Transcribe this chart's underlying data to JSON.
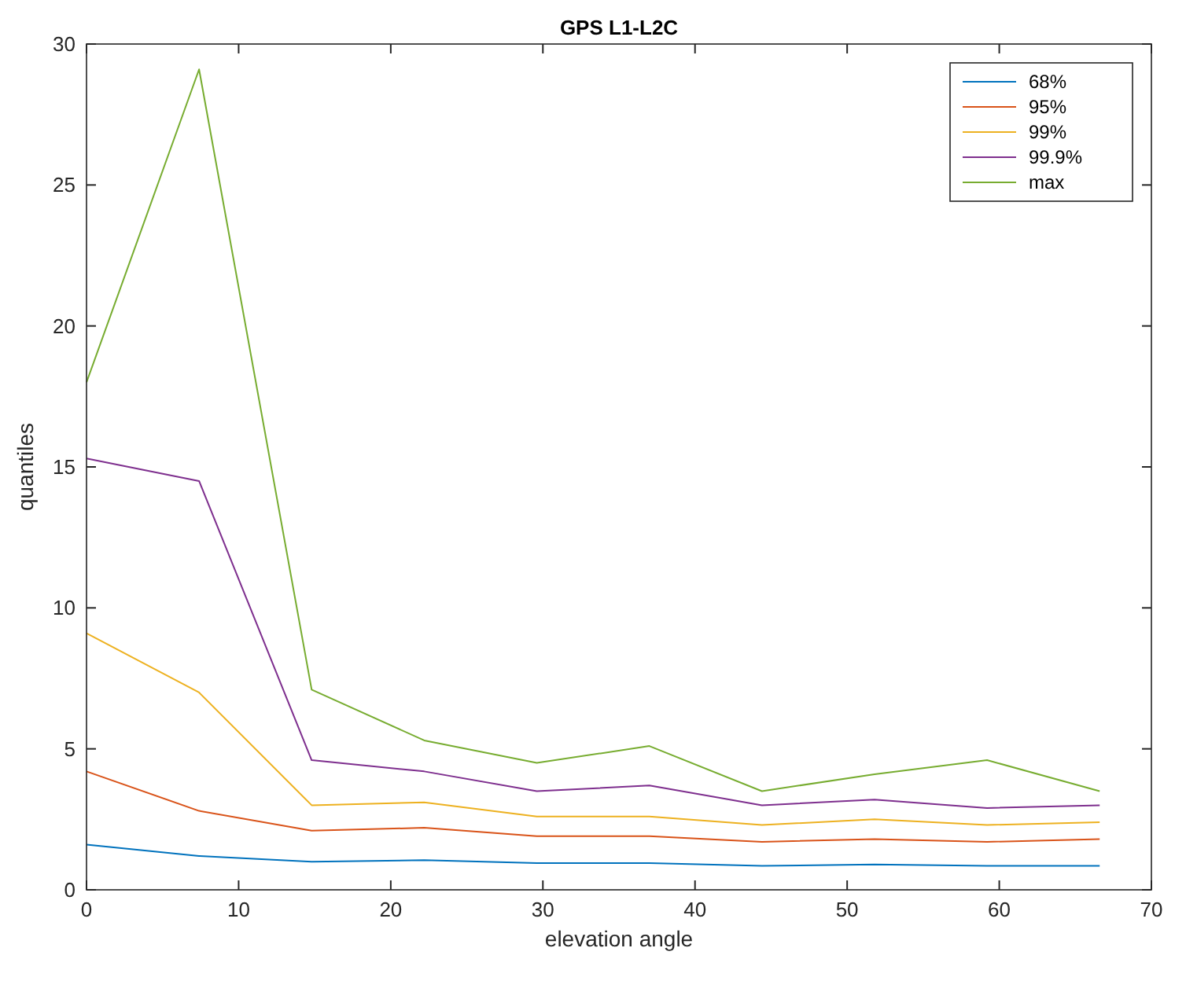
{
  "chart_data": {
    "type": "line",
    "title": "GPS L1-L2C",
    "xlabel": "elevation angle",
    "ylabel": "quantiles",
    "x": [
      0,
      7.4,
      14.8,
      22.2,
      29.6,
      37,
      44.4,
      51.8,
      59.2,
      66.6
    ],
    "xlim": [
      0,
      70
    ],
    "xticks": [
      0,
      10,
      20,
      30,
      40,
      50,
      60,
      70
    ],
    "ylim": [
      0,
      30
    ],
    "yticks": [
      0,
      5,
      10,
      15,
      20,
      25,
      30
    ],
    "grid": false,
    "legend": "top right",
    "marker": "none",
    "line_style": "solid",
    "series": [
      {
        "name": "68%",
        "color": "#0072bd",
        "values": [
          1.6,
          1.2,
          1.0,
          1.05,
          0.95,
          0.95,
          0.85,
          0.9,
          0.85,
          0.85
        ]
      },
      {
        "name": "95%",
        "color": "#d95319",
        "values": [
          4.2,
          2.8,
          2.1,
          2.2,
          1.9,
          1.9,
          1.7,
          1.8,
          1.7,
          1.8
        ]
      },
      {
        "name": "99%",
        "color": "#edb120",
        "values": [
          9.1,
          7.0,
          3.0,
          3.1,
          2.6,
          2.6,
          2.3,
          2.5,
          2.3,
          2.4
        ]
      },
      {
        "name": "99.9%",
        "color": "#7e2f8e",
        "values": [
          15.3,
          14.5,
          4.6,
          4.2,
          3.5,
          3.7,
          3.0,
          3.2,
          2.9,
          3.0
        ]
      },
      {
        "name": "max",
        "color": "#77ac30",
        "values": [
          18.0,
          29.1,
          7.1,
          5.3,
          4.5,
          5.1,
          3.5,
          4.1,
          4.6,
          3.5
        ]
      }
    ]
  }
}
